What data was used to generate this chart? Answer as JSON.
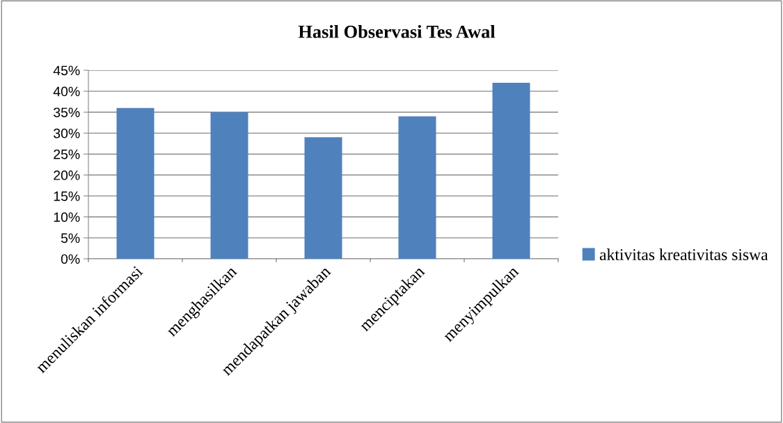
{
  "chart_data": {
    "type": "bar",
    "title": "Hasil Observasi Tes Awal",
    "categories": [
      "menuliskan informasi",
      "menghasilkan",
      "mendapatkan jawaban",
      "menciptakan",
      "menyimpulkan"
    ],
    "series": [
      {
        "name": "aktivitas kreativitas siswa",
        "color": "#4f81bd",
        "values": [
          36,
          35,
          29,
          34,
          42
        ]
      }
    ],
    "ylim": [
      0,
      45
    ],
    "yticks": [
      {
        "value": 0,
        "label": "0%"
      },
      {
        "value": 5,
        "label": "5%"
      },
      {
        "value": 10,
        "label": "10%"
      },
      {
        "value": 15,
        "label": "15%"
      },
      {
        "value": 20,
        "label": "20%"
      },
      {
        "value": 25,
        "label": "25%"
      },
      {
        "value": 30,
        "label": "30%"
      },
      {
        "value": 35,
        "label": "35%"
      },
      {
        "value": 40,
        "label": "40%"
      },
      {
        "value": 45,
        "label": "45%"
      }
    ],
    "grid": "y",
    "legend": "right"
  }
}
